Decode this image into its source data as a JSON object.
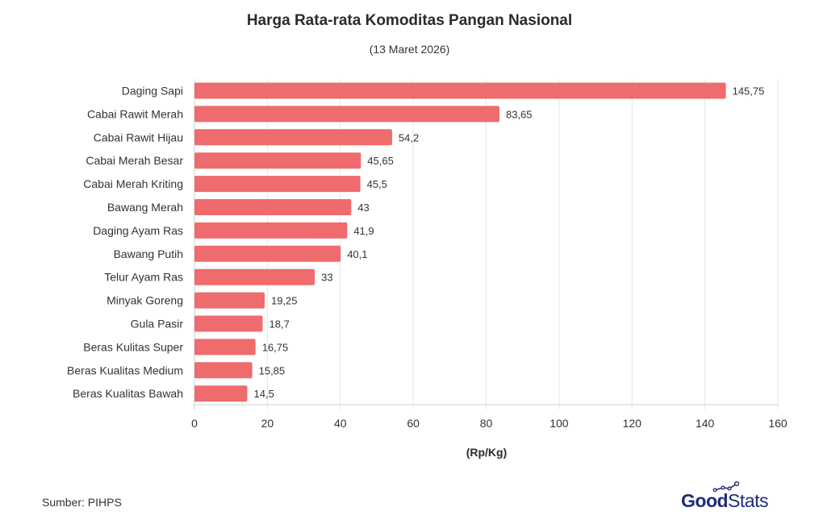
{
  "title": "Harga Rata-rata Komoditas Pangan Nasional",
  "subtitle": "(13 Maret 2026)",
  "source": "Sumber: PIHPS",
  "logo": {
    "part1": "Good",
    "part2": "Stats",
    "color": "#1f2a7a"
  },
  "colors": {
    "bar": "#ee6b6e",
    "grid": "#e6e6e6",
    "axis": "#cccccc"
  },
  "chart_data": {
    "type": "bar",
    "orientation": "horizontal",
    "title": "Harga Rata-rata Komoditas Pangan Nasional",
    "subtitle": "(13 Maret 2026)",
    "xlabel": "(Rp/Kg)",
    "ylabel": "",
    "xlim": [
      0,
      160
    ],
    "xticks": [
      0,
      20,
      40,
      60,
      80,
      100,
      120,
      140,
      160
    ],
    "grid": true,
    "categories": [
      "Daging Sapi",
      "Cabai Rawit Merah",
      "Cabai Rawit Hijau",
      "Cabai Merah Besar",
      "Cabai Merah Kriting",
      "Bawang Merah",
      "Daging Ayam Ras",
      "Bawang Putih",
      "Telur Ayam Ras",
      "Minyak Goreng",
      "Gula Pasir",
      "Beras Kulitas Super",
      "Beras Kualitas Medium",
      "Beras Kualitas Bawah"
    ],
    "values": [
      145.75,
      83.65,
      54.2,
      45.65,
      45.5,
      43,
      41.9,
      40.1,
      33,
      19.25,
      18.7,
      16.75,
      15.85,
      14.5
    ],
    "labels": [
      "145,75",
      "83,65",
      "54,2",
      "45,65",
      "45,5",
      "43",
      "41,9",
      "40,1",
      "33",
      "19,25",
      "18,7",
      "16,75",
      "15,85",
      "14,5"
    ]
  }
}
